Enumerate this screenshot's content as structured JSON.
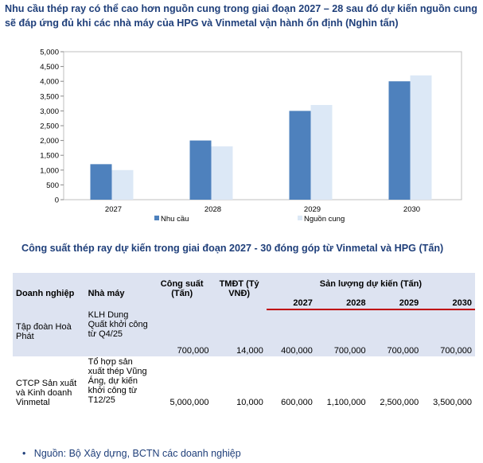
{
  "title": "Nhu cầu thép ray có thể cao hơn nguồn cung trong giai đoạn 2027 – 28 sau đó dự kiến nguồn cung sẽ đáp ứng đủ khi các nhà máy của HPG và Vinmetal vận hành ổn định (Nghìn tấn)",
  "chart_data": {
    "type": "bar",
    "categories": [
      "2027",
      "2028",
      "2029",
      "2030"
    ],
    "series": [
      {
        "name": "Nhu cầu",
        "values": [
          1200,
          2000,
          3000,
          4000
        ],
        "color": "#4e81bd"
      },
      {
        "name": "Nguồn cung",
        "values": [
          1000,
          1800,
          3200,
          4200
        ],
        "color": "#dce8f6"
      }
    ],
    "yticks": [
      "0",
      "500",
      "1,000",
      "1,500",
      "2,000",
      "2,500",
      "3,000",
      "3,500",
      "4,000",
      "4,500",
      "5,000"
    ],
    "ylim": [
      0,
      5000
    ],
    "grid": false,
    "legend": "bottom"
  },
  "table_title": "Công suất thép ray dự kiến trong giai đoạn 2027 - 30 đóng góp từ Vinmetal và HPG (Tấn)",
  "table": {
    "headers": {
      "company": "Doanh nghiệp",
      "plant": "Nhà máy",
      "capacity": "Công suất (Tấn)",
      "investment": "TMĐT (Tỷ VNĐ)",
      "output": "Sản lượng dự kiến (Tấn)",
      "years": [
        "2027",
        "2028",
        "2029",
        "2030"
      ]
    },
    "rows": [
      {
        "company": "Tập đoàn Hoà Phát",
        "plant": "KLH Dung Quất khởi công từ Q4/25",
        "capacity": "700,000",
        "investment": "14,000",
        "output": [
          "400,000",
          "700,000",
          "700,000",
          "700,000"
        ]
      },
      {
        "company": "CTCP Sản xuất và Kinh doanh Vinmetal",
        "plant": "Tổ hợp sản xuất thép Vũng Áng, dự kiến khởi công từ T12/25",
        "capacity": "5,000,000",
        "investment": "10,000",
        "output": [
          "600,000",
          "1,100,000",
          "2,500,000",
          "3,500,000"
        ]
      }
    ]
  },
  "source": "Nguồn: Bộ Xây dựng, BCTN các doanh nghiệp",
  "colors": {
    "title": "#1f3f7a",
    "header_bg": "#dde3f1",
    "rule": "#c00000"
  }
}
